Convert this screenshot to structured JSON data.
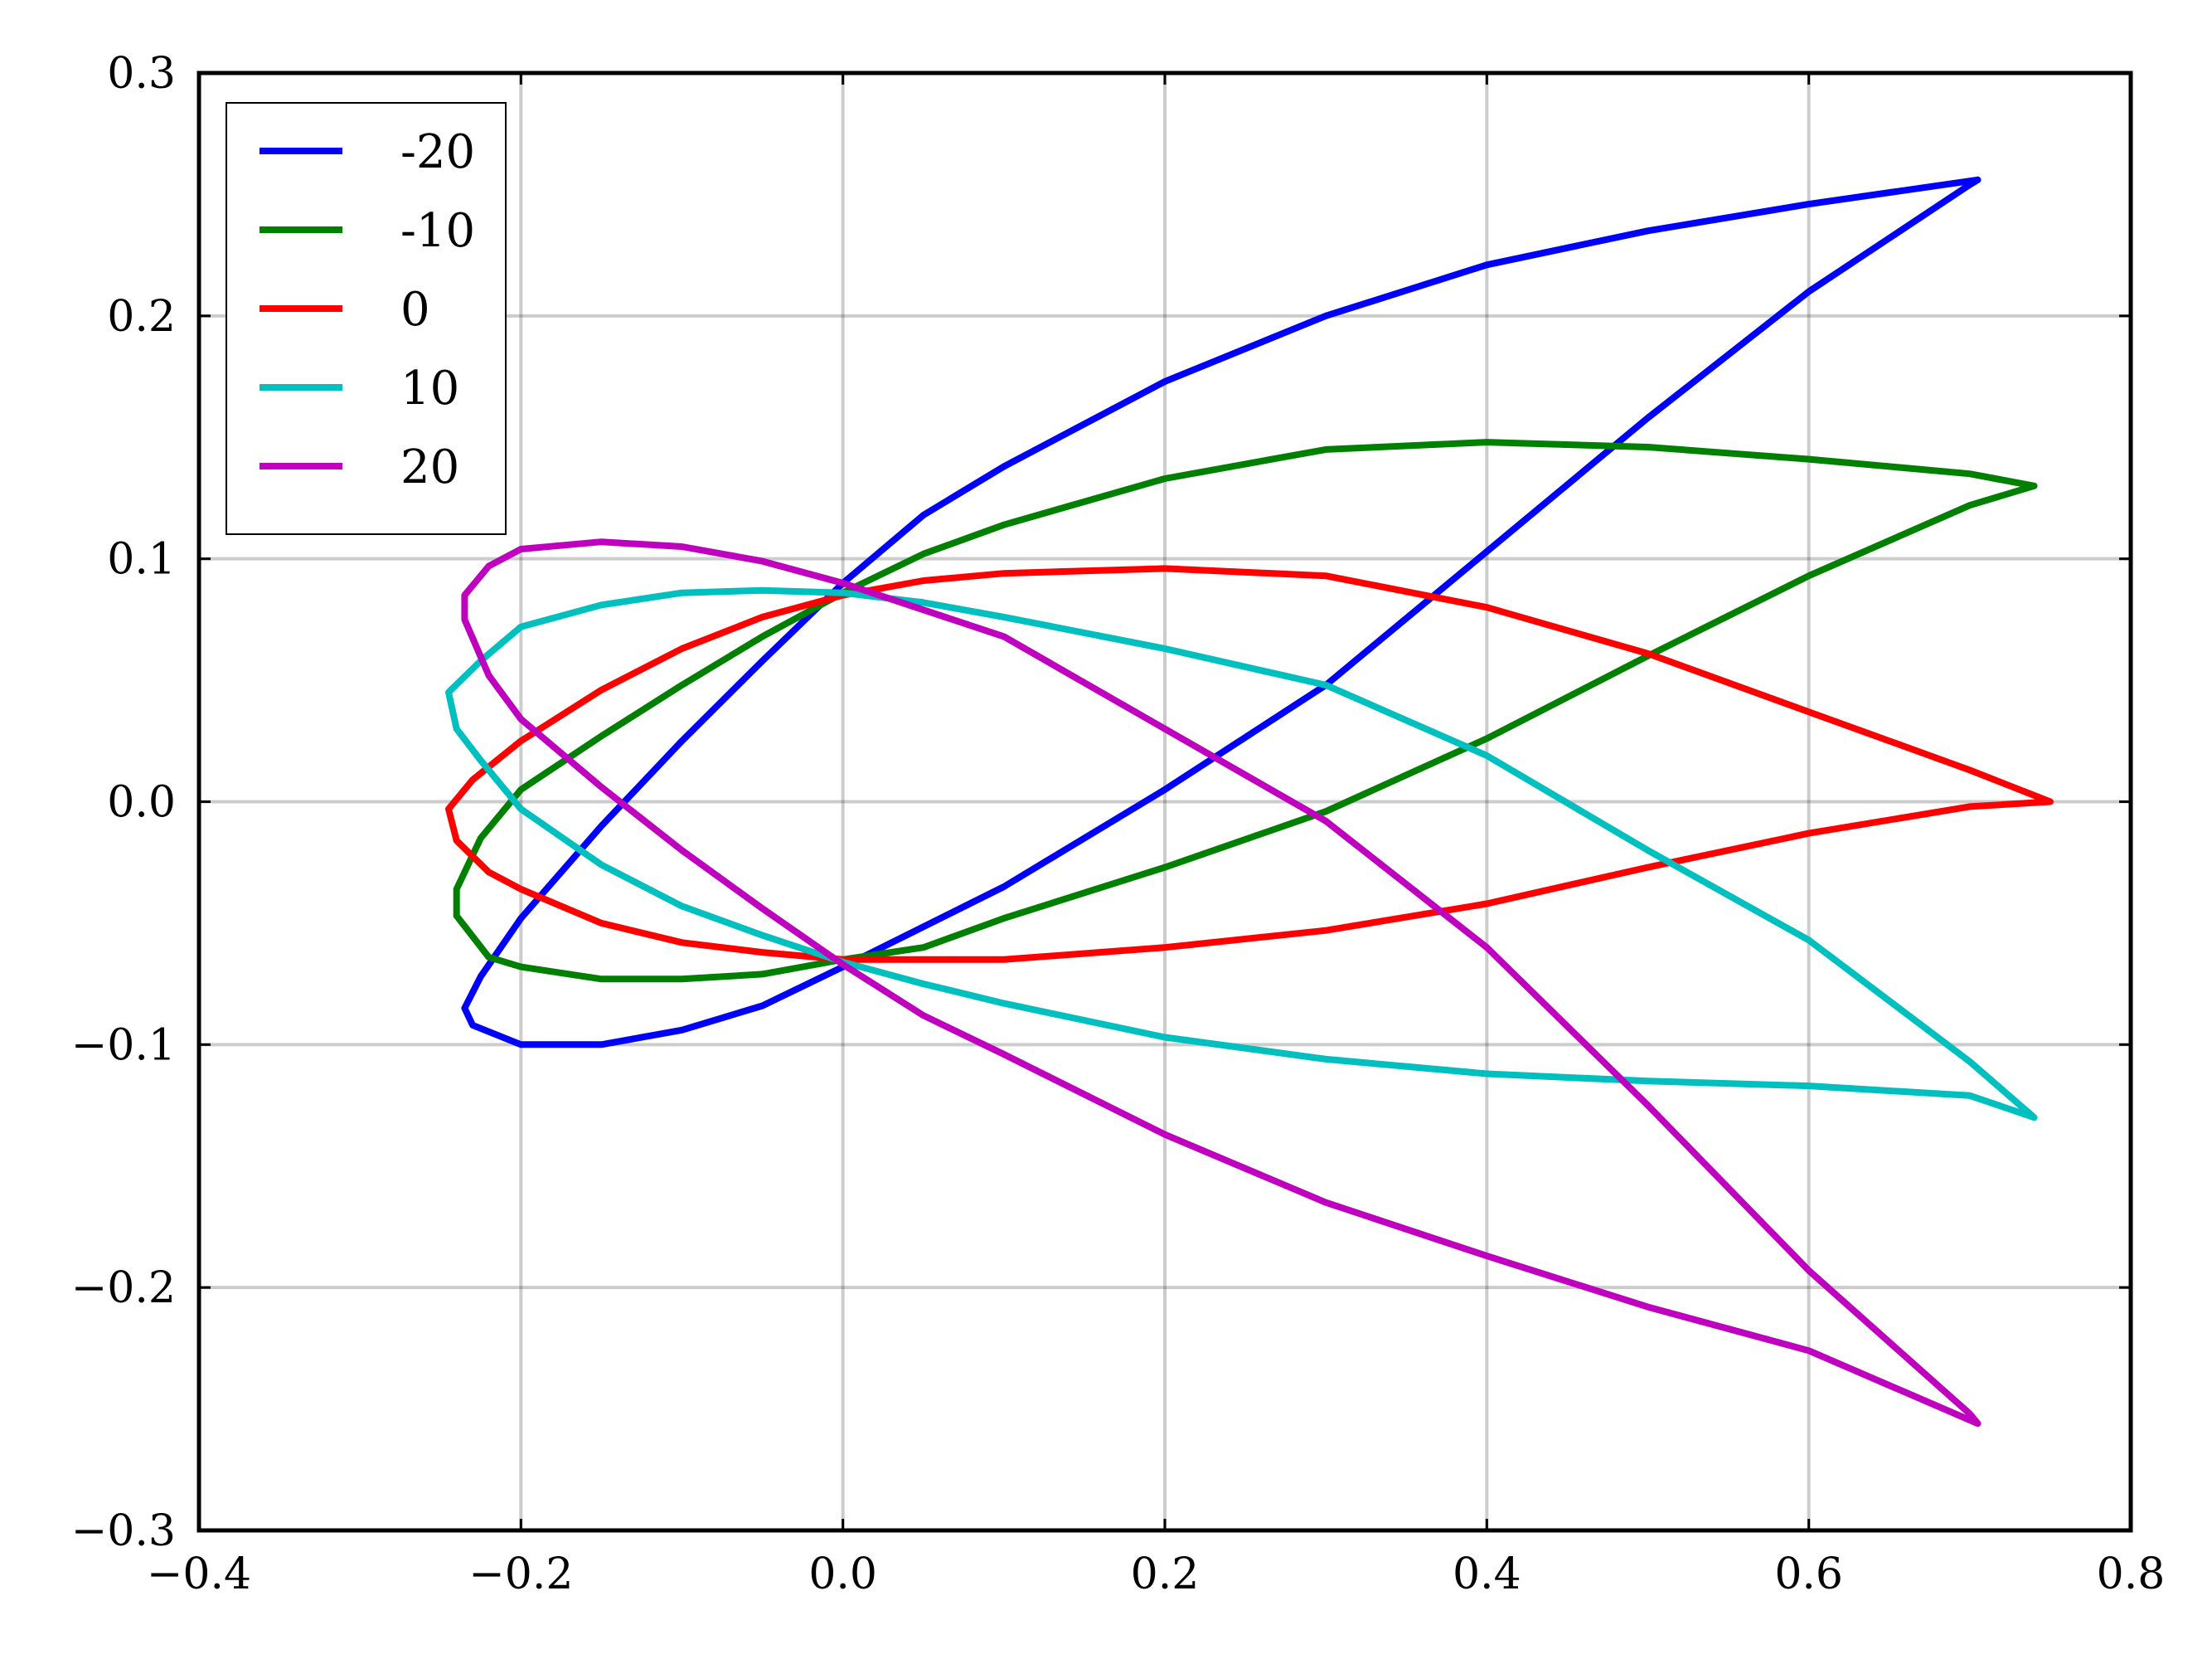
{
  "chart_data": {
    "type": "line",
    "title": "",
    "xlabel": "",
    "ylabel": "",
    "xlim": [
      -0.4,
      0.8
    ],
    "ylim": [
      -0.3,
      0.3
    ],
    "xticks": [
      "−0.4",
      "−0.2",
      "0.0",
      "0.2",
      "0.4",
      "0.6",
      "0.8"
    ],
    "yticks": [
      "−0.3",
      "−0.2",
      "−0.1",
      "0.0",
      "0.1",
      "0.2",
      "0.3"
    ],
    "grid": true,
    "legend_position": "top-left",
    "series": [
      {
        "name": "-20",
        "color": "#0000ff",
        "points": [
          [
            0.705,
            0.256
          ],
          [
            0.6,
            0.246
          ],
          [
            0.5,
            0.235
          ],
          [
            0.4,
            0.221
          ],
          [
            0.3,
            0.2
          ],
          [
            0.2,
            0.173
          ],
          [
            0.1,
            0.138
          ],
          [
            0.05,
            0.118
          ],
          [
            0.0,
            0.09
          ],
          [
            -0.05,
            0.058
          ],
          [
            -0.1,
            0.025
          ],
          [
            -0.15,
            -0.01
          ],
          [
            -0.2,
            -0.048
          ],
          [
            -0.225,
            -0.072
          ],
          [
            -0.235,
            -0.085
          ],
          [
            -0.23,
            -0.092
          ],
          [
            -0.2,
            -0.1
          ],
          [
            -0.15,
            -0.1
          ],
          [
            -0.1,
            -0.094
          ],
          [
            -0.05,
            -0.084
          ],
          [
            0.0,
            -0.068
          ],
          [
            0.1,
            -0.035
          ],
          [
            0.2,
            0.005
          ],
          [
            0.3,
            0.048
          ],
          [
            0.4,
            0.103
          ],
          [
            0.5,
            0.158
          ],
          [
            0.6,
            0.21
          ],
          [
            0.7,
            0.254
          ],
          [
            0.705,
            0.256
          ]
        ]
      },
      {
        "name": "-10",
        "color": "#008000",
        "points": [
          [
            0.74,
            0.13
          ],
          [
            0.7,
            0.135
          ],
          [
            0.6,
            0.141
          ],
          [
            0.5,
            0.146
          ],
          [
            0.4,
            0.148
          ],
          [
            0.3,
            0.145
          ],
          [
            0.2,
            0.133
          ],
          [
            0.1,
            0.114
          ],
          [
            0.05,
            0.102
          ],
          [
            0.0,
            0.086
          ],
          [
            -0.05,
            0.068
          ],
          [
            -0.1,
            0.048
          ],
          [
            -0.15,
            0.027
          ],
          [
            -0.2,
            0.005
          ],
          [
            -0.225,
            -0.015
          ],
          [
            -0.24,
            -0.036
          ],
          [
            -0.24,
            -0.047
          ],
          [
            -0.22,
            -0.064
          ],
          [
            -0.2,
            -0.068
          ],
          [
            -0.15,
            -0.073
          ],
          [
            -0.1,
            -0.073
          ],
          [
            -0.05,
            -0.071
          ],
          [
            0.0,
            -0.065
          ],
          [
            0.05,
            -0.06
          ],
          [
            0.1,
            -0.048
          ],
          [
            0.2,
            -0.027
          ],
          [
            0.3,
            -0.004
          ],
          [
            0.4,
            0.026
          ],
          [
            0.5,
            0.06
          ],
          [
            0.6,
            0.093
          ],
          [
            0.7,
            0.122
          ],
          [
            0.74,
            0.13
          ]
        ]
      },
      {
        "name": "0",
        "color": "#ff0000",
        "points": [
          [
            0.75,
            0.0
          ],
          [
            0.7,
            0.013
          ],
          [
            0.6,
            0.037
          ],
          [
            0.5,
            0.061
          ],
          [
            0.4,
            0.08
          ],
          [
            0.3,
            0.093
          ],
          [
            0.2,
            0.096
          ],
          [
            0.1,
            0.094
          ],
          [
            0.05,
            0.091
          ],
          [
            0.0,
            0.085
          ],
          [
            -0.05,
            0.076
          ],
          [
            -0.1,
            0.063
          ],
          [
            -0.15,
            0.046
          ],
          [
            -0.2,
            0.025
          ],
          [
            -0.23,
            0.009
          ],
          [
            -0.245,
            -0.003
          ],
          [
            -0.24,
            -0.016
          ],
          [
            -0.22,
            -0.029
          ],
          [
            -0.2,
            -0.036
          ],
          [
            -0.15,
            -0.05
          ],
          [
            -0.1,
            -0.058
          ],
          [
            -0.05,
            -0.062
          ],
          [
            0.0,
            -0.065
          ],
          [
            0.05,
            -0.065
          ],
          [
            0.1,
            -0.065
          ],
          [
            0.2,
            -0.06
          ],
          [
            0.3,
            -0.053
          ],
          [
            0.4,
            -0.042
          ],
          [
            0.5,
            -0.027
          ],
          [
            0.6,
            -0.013
          ],
          [
            0.7,
            -0.002
          ],
          [
            0.75,
            0.0
          ]
        ]
      },
      {
        "name": "10",
        "color": "#00bfbf",
        "points": [
          [
            0.74,
            -0.13
          ],
          [
            0.7,
            -0.107
          ],
          [
            0.6,
            -0.057
          ],
          [
            0.5,
            -0.02
          ],
          [
            0.4,
            0.019
          ],
          [
            0.3,
            0.048
          ],
          [
            0.2,
            0.063
          ],
          [
            0.1,
            0.076
          ],
          [
            0.05,
            0.082
          ],
          [
            0.0,
            0.086
          ],
          [
            -0.05,
            0.087
          ],
          [
            -0.1,
            0.086
          ],
          [
            -0.15,
            0.081
          ],
          [
            -0.2,
            0.072
          ],
          [
            -0.225,
            0.058
          ],
          [
            -0.245,
            0.045
          ],
          [
            -0.24,
            0.03
          ],
          [
            -0.225,
            0.017
          ],
          [
            -0.2,
            -0.003
          ],
          [
            -0.15,
            -0.026
          ],
          [
            -0.1,
            -0.043
          ],
          [
            -0.05,
            -0.055
          ],
          [
            0.0,
            -0.066
          ],
          [
            0.05,
            -0.075
          ],
          [
            0.1,
            -0.083
          ],
          [
            0.2,
            -0.097
          ],
          [
            0.3,
            -0.106
          ],
          [
            0.4,
            -0.112
          ],
          [
            0.5,
            -0.115
          ],
          [
            0.6,
            -0.117
          ],
          [
            0.7,
            -0.121
          ],
          [
            0.74,
            -0.13
          ]
        ]
      },
      {
        "name": "20",
        "color": "#bf00bf",
        "points": [
          [
            0.705,
            -0.256
          ],
          [
            0.6,
            -0.226
          ],
          [
            0.5,
            -0.208
          ],
          [
            0.4,
            -0.187
          ],
          [
            0.3,
            -0.165
          ],
          [
            0.2,
            -0.137
          ],
          [
            0.1,
            -0.104
          ],
          [
            0.05,
            -0.088
          ],
          [
            0.0,
            -0.067
          ],
          [
            -0.05,
            -0.044
          ],
          [
            -0.1,
            -0.02
          ],
          [
            -0.15,
            0.006
          ],
          [
            -0.2,
            0.034
          ],
          [
            -0.22,
            0.052
          ],
          [
            -0.235,
            0.075
          ],
          [
            -0.235,
            0.085
          ],
          [
            -0.22,
            0.097
          ],
          [
            -0.2,
            0.104
          ],
          [
            -0.15,
            0.107
          ],
          [
            -0.1,
            0.105
          ],
          [
            -0.05,
            0.099
          ],
          [
            0.0,
            0.09
          ],
          [
            0.1,
            0.068
          ],
          [
            0.2,
            0.03
          ],
          [
            0.3,
            -0.008
          ],
          [
            0.4,
            -0.06
          ],
          [
            0.5,
            -0.125
          ],
          [
            0.6,
            -0.193
          ],
          [
            0.7,
            -0.252
          ],
          [
            0.705,
            -0.256
          ]
        ]
      }
    ]
  }
}
